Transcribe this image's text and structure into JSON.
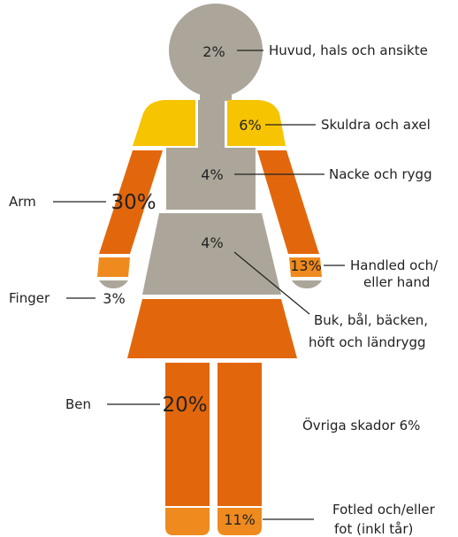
{
  "parts": [
    {
      "label": [
        "Huvud, hals och ansikte"
      ],
      "value": "2%"
    },
    {
      "label": [
        "Skuldra och axel"
      ],
      "value": "6%"
    },
    {
      "label": [
        "Nacke och rygg"
      ],
      "value": "4%"
    },
    {
      "label": [
        "Arm"
      ],
      "value": "30%"
    },
    {
      "label": [
        "Handled och/",
        "eller hand"
      ],
      "value": "13%"
    },
    {
      "label": [
        "Finger"
      ],
      "value": "3%"
    },
    {
      "label": [
        "Buk, bål, bäcken,",
        "höft och ländrygg"
      ],
      "value": "4%"
    },
    {
      "label": [
        "Ben"
      ],
      "value": "20%"
    },
    {
      "label": [
        "Fotled och/eller",
        "fot (inkl tår)"
      ],
      "value": "11%"
    }
  ],
  "other": "Övriga skador 6%"
}
